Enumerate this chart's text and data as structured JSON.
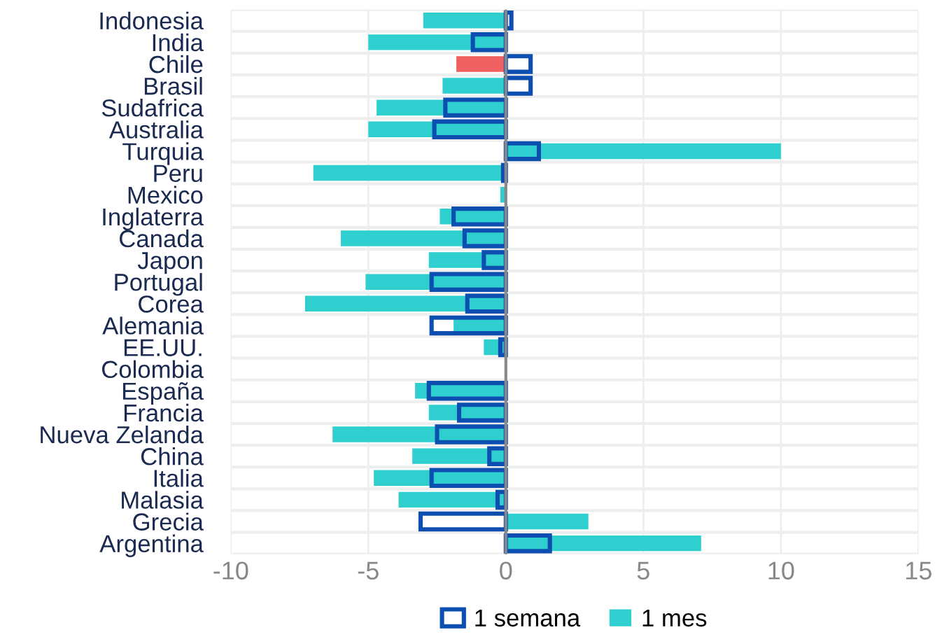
{
  "chart_data": {
    "type": "bar",
    "orientation": "horizontal",
    "categories": [
      "Indonesia",
      "India",
      "Chile",
      "Brasil",
      "Sudafrica",
      "Australia",
      "Turquia",
      "Peru",
      "Mexico",
      "Inglaterra",
      "Canada",
      "Japon",
      "Portugal",
      "Corea",
      "Alemania",
      "EE.UU.",
      "Colombia",
      "España",
      "Francia",
      "Nueva Zelanda",
      "China",
      "Italia",
      "Malasia",
      "Grecia",
      "Argentina"
    ],
    "series": [
      {
        "name": "1 mes",
        "color": "#2ecfce",
        "colors": [
          "#2ecfce",
          "#2ecfce",
          "#f26161",
          "#2ecfce",
          "#2ecfce",
          "#2ecfce",
          "#2ecfce",
          "#2ecfce",
          "#2ecfce",
          "#2ecfce",
          "#2ecfce",
          "#2ecfce",
          "#2ecfce",
          "#2ecfce",
          "#2ecfce",
          "#2ecfce",
          "#2ecfce",
          "#2ecfce",
          "#2ecfce",
          "#2ecfce",
          "#2ecfce",
          "#2ecfce",
          "#2ecfce",
          "#2ecfce",
          "#2ecfce"
        ],
        "values": [
          -3.0,
          -5.0,
          -1.8,
          -2.3,
          -4.7,
          -5.0,
          10.0,
          -7.0,
          -0.2,
          -2.4,
          -6.0,
          -2.8,
          -5.1,
          -7.3,
          -1.9,
          -0.8,
          null,
          -3.3,
          -2.8,
          -6.3,
          -3.4,
          -4.8,
          -3.9,
          3.0,
          7.1
        ]
      },
      {
        "name": "1 semana",
        "color": "#0d4fb0",
        "values": [
          0.2,
          -1.2,
          0.9,
          0.9,
          -2.2,
          -2.6,
          1.2,
          -0.1,
          null,
          -1.9,
          -1.5,
          -0.8,
          -2.7,
          -1.4,
          -2.7,
          -0.2,
          null,
          -2.8,
          -1.7,
          -2.5,
          -0.6,
          -2.7,
          -0.3,
          -3.1,
          1.6
        ]
      }
    ],
    "xlim": [
      -10,
      15
    ],
    "xticks": [
      -10,
      -5,
      0,
      5,
      10,
      15
    ],
    "grid": true,
    "legend": "bottom"
  }
}
